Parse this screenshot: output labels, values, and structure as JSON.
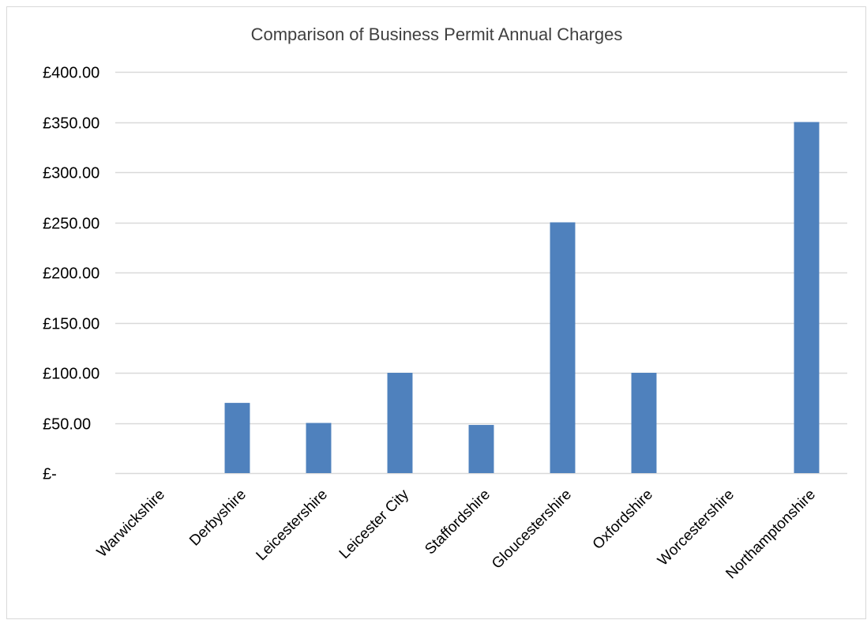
{
  "chart_data": {
    "type": "bar",
    "title": "Comparison of Business Permit Annual Charges",
    "xlabel": "",
    "ylabel": "",
    "categories": [
      "Warwickshire",
      "Derbyshire",
      "Leicestershire",
      "Leicester City",
      "Staffordshire",
      "Gloucestershire",
      "Oxfordshire",
      "Worcestershire",
      "Northamptonshire"
    ],
    "values": [
      0,
      70,
      50,
      100,
      48,
      250,
      100,
      0,
      350
    ],
    "ylim": [
      0,
      400
    ],
    "yticks": [
      0,
      50,
      100,
      150,
      200,
      250,
      300,
      350,
      400
    ],
    "ytick_labels": [
      "£-",
      "£50.00",
      "£100.00",
      "£150.00",
      "£200.00",
      "£250.00",
      "£300.00",
      "£350.00",
      "£400.00"
    ],
    "grid": true,
    "legend": "none",
    "bar_color": "#4f81bd",
    "grid_color": "#d9d9d9"
  }
}
